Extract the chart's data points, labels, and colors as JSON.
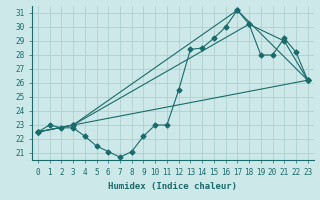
{
  "xlabel": "Humidex (Indice chaleur)",
  "xlim": [
    -0.5,
    23.5
  ],
  "ylim": [
    20.5,
    31.5
  ],
  "xticks": [
    0,
    1,
    2,
    3,
    4,
    5,
    6,
    7,
    8,
    9,
    10,
    11,
    12,
    13,
    14,
    15,
    16,
    17,
    18,
    19,
    20,
    21,
    22,
    23
  ],
  "yticks": [
    21,
    22,
    23,
    24,
    25,
    26,
    27,
    28,
    29,
    30,
    31
  ],
  "background_color": "#cce8e8",
  "grid_color": "#aacccc",
  "line_color": "#1a6b6b",
  "line1_x": [
    0,
    1,
    2,
    3,
    4,
    5,
    6,
    7,
    8,
    9,
    10,
    11,
    12,
    13,
    14,
    15,
    16,
    17,
    18,
    19,
    20,
    21,
    22,
    23
  ],
  "line1_y": [
    22.5,
    23.0,
    22.8,
    22.8,
    22.2,
    21.5,
    21.1,
    20.7,
    21.1,
    22.2,
    23.0,
    23.0,
    25.5,
    28.4,
    28.5,
    29.2,
    30.0,
    31.2,
    30.2,
    28.0,
    28.0,
    29.2,
    28.2,
    26.2
  ],
  "line2_x": [
    0,
    3,
    23
  ],
  "line2_y": [
    22.5,
    23.0,
    26.2
  ],
  "line3_x": [
    0,
    3,
    17,
    23
  ],
  "line3_y": [
    22.5,
    23.0,
    31.2,
    26.2
  ],
  "line4_x": [
    0,
    3,
    18,
    21,
    23
  ],
  "line4_y": [
    22.5,
    23.0,
    30.2,
    29.0,
    26.2
  ],
  "marker_style": "D",
  "marker_size": 2.5,
  "axis_fontsize": 6.5,
  "tick_fontsize": 5.5
}
